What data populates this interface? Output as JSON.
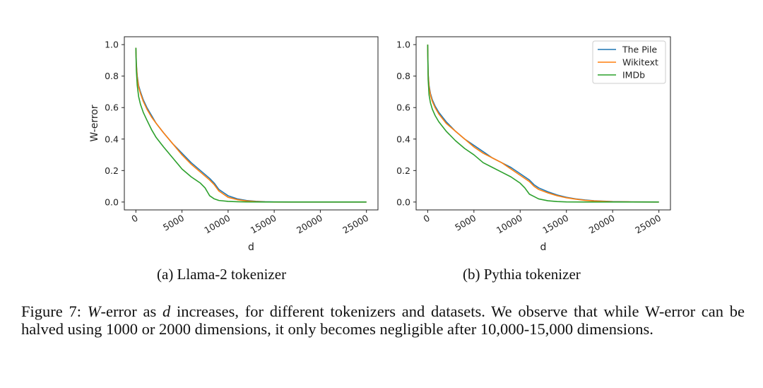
{
  "colors": {
    "the_pile": "#1f77b4",
    "wikitext": "#ff7f0e",
    "imdb": "#2ca02c"
  },
  "chart_data": [
    {
      "type": "line",
      "title": "",
      "subcaption": "(a) Llama-2 tokenizer",
      "xlabel": "d",
      "ylabel": "W-error",
      "xlim": [
        -1250,
        26250
      ],
      "ylim": [
        -0.05,
        1.05
      ],
      "xticks": [
        0,
        5000,
        10000,
        15000,
        20000,
        25000
      ],
      "xtick_labels": [
        "0",
        "5000",
        "10000",
        "15000",
        "20000",
        "25000"
      ],
      "yticks": [
        0.0,
        0.2,
        0.4,
        0.6,
        0.8,
        1.0
      ],
      "ytick_labels": [
        "0.0",
        "0.2",
        "0.4",
        "0.6",
        "0.8",
        "1.0"
      ],
      "legend": null,
      "series": [
        {
          "name": "The Pile",
          "x": [
            0,
            50,
            150,
            300,
            500,
            800,
            1200,
            1700,
            2200,
            3000,
            4000,
            5000,
            6000,
            7000,
            8000,
            8500,
            9000,
            9500,
            10000,
            11000,
            12000,
            13000,
            14000,
            15000,
            17000,
            20000,
            25000
          ],
          "y": [
            0.98,
            0.88,
            0.8,
            0.74,
            0.7,
            0.65,
            0.6,
            0.55,
            0.5,
            0.44,
            0.37,
            0.31,
            0.25,
            0.2,
            0.15,
            0.12,
            0.08,
            0.06,
            0.04,
            0.02,
            0.01,
            0.005,
            0.002,
            0.001,
            0.0,
            0.0,
            0.0
          ]
        },
        {
          "name": "Wikitext",
          "x": [
            0,
            50,
            150,
            300,
            500,
            800,
            1200,
            1700,
            2200,
            3000,
            4000,
            5000,
            6000,
            7000,
            8000,
            8500,
            9000,
            9500,
            10000,
            11000,
            12000,
            13000,
            14000,
            15000,
            17000,
            20000,
            25000
          ],
          "y": [
            0.98,
            0.87,
            0.79,
            0.73,
            0.69,
            0.64,
            0.59,
            0.54,
            0.5,
            0.44,
            0.37,
            0.3,
            0.24,
            0.19,
            0.14,
            0.11,
            0.07,
            0.05,
            0.03,
            0.015,
            0.007,
            0.003,
            0.001,
            0.0,
            0.0,
            0.0,
            0.0
          ]
        },
        {
          "name": "IMDb",
          "x": [
            0,
            50,
            150,
            300,
            500,
            800,
            1200,
            1700,
            2200,
            3000,
            4000,
            5000,
            6000,
            7000,
            7500,
            7800,
            8000,
            8500,
            9000,
            10000,
            11000,
            12000,
            14000,
            17000,
            20000,
            25000
          ],
          "y": [
            0.98,
            0.84,
            0.74,
            0.67,
            0.62,
            0.57,
            0.52,
            0.46,
            0.41,
            0.35,
            0.28,
            0.21,
            0.16,
            0.12,
            0.09,
            0.06,
            0.04,
            0.02,
            0.01,
            0.004,
            0.002,
            0.001,
            0.0,
            0.0,
            0.0,
            0.0
          ]
        }
      ]
    },
    {
      "type": "line",
      "title": "",
      "subcaption": "(b) Pythia tokenizer",
      "xlabel": "d",
      "ylabel": "",
      "xlim": [
        -1250,
        26250
      ],
      "ylim": [
        -0.05,
        1.05
      ],
      "xticks": [
        0,
        5000,
        10000,
        15000,
        20000,
        25000
      ],
      "xtick_labels": [
        "0",
        "5000",
        "10000",
        "15000",
        "20000",
        "25000"
      ],
      "yticks": [
        0.0,
        0.2,
        0.4,
        0.6,
        0.8,
        1.0
      ],
      "ytick_labels": [
        "0.0",
        "0.2",
        "0.4",
        "0.6",
        "0.8",
        "1.0"
      ],
      "legend": {
        "location": "top-right",
        "entries": [
          "The Pile",
          "Wikitext",
          "IMDb"
        ]
      },
      "series": [
        {
          "name": "The Pile",
          "x": [
            0,
            50,
            150,
            300,
            500,
            800,
            1200,
            2000,
            3000,
            4000,
            5000,
            6000,
            7000,
            8000,
            9000,
            10000,
            11000,
            11500,
            12000,
            13000,
            14000,
            15000,
            16000,
            17000,
            18000,
            20000,
            22000,
            25000
          ],
          "y": [
            1.0,
            0.82,
            0.74,
            0.69,
            0.65,
            0.61,
            0.57,
            0.51,
            0.45,
            0.4,
            0.36,
            0.32,
            0.28,
            0.25,
            0.22,
            0.18,
            0.14,
            0.11,
            0.09,
            0.065,
            0.045,
            0.03,
            0.02,
            0.013,
            0.008,
            0.003,
            0.001,
            0.0
          ]
        },
        {
          "name": "Wikitext",
          "x": [
            0,
            50,
            150,
            300,
            500,
            800,
            1200,
            2000,
            3000,
            4000,
            5000,
            6000,
            7000,
            8000,
            9000,
            10000,
            11000,
            11500,
            12000,
            13000,
            14000,
            15000,
            16000,
            17000,
            18000,
            20000,
            22000,
            25000
          ],
          "y": [
            1.0,
            0.81,
            0.73,
            0.68,
            0.64,
            0.6,
            0.56,
            0.5,
            0.45,
            0.4,
            0.35,
            0.31,
            0.28,
            0.25,
            0.21,
            0.17,
            0.13,
            0.1,
            0.08,
            0.058,
            0.04,
            0.027,
            0.018,
            0.011,
            0.007,
            0.002,
            0.001,
            0.0
          ]
        },
        {
          "name": "IMDb",
          "x": [
            0,
            50,
            150,
            300,
            500,
            800,
            1200,
            2000,
            3000,
            4000,
            5000,
            6000,
            7000,
            8000,
            9000,
            10000,
            10500,
            11000,
            11500,
            12000,
            13000,
            14000,
            15000,
            17000,
            20000,
            25000
          ],
          "y": [
            1.0,
            0.78,
            0.68,
            0.63,
            0.59,
            0.55,
            0.51,
            0.45,
            0.39,
            0.34,
            0.3,
            0.25,
            0.22,
            0.19,
            0.16,
            0.12,
            0.09,
            0.05,
            0.035,
            0.02,
            0.008,
            0.003,
            0.001,
            0.0,
            0.0,
            0.0
          ]
        }
      ]
    }
  ],
  "caption": {
    "label": "Figure 7:",
    "w": "W",
    "text1": "-error as",
    "d": "d",
    "text2": "increases, for different tokenizers and datasets. We observe that while W-error can be halved using 1000 or 2000 dimensions, it only becomes negligible after 10,000-15,000 dimensions."
  }
}
